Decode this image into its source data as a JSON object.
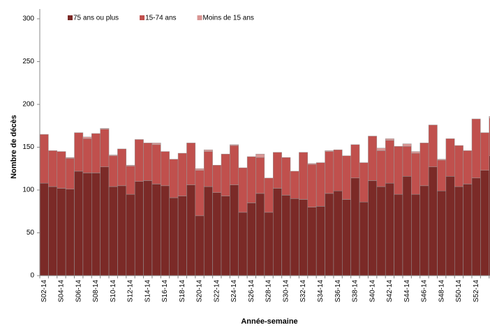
{
  "chart_data": {
    "type": "stacked_bar",
    "x_label": "Année-semaine",
    "y_label": "Nombre  de décès",
    "categories": [
      "S02-14",
      null,
      "S04-14",
      null,
      "S06-14",
      null,
      "S08-14",
      null,
      "S10-14",
      null,
      "S12-14",
      null,
      "S14-14",
      null,
      "S16-14",
      null,
      "S18-14",
      null,
      "S20-14",
      null,
      "S22-14",
      null,
      "S24-14",
      null,
      "S26-14",
      null,
      "S28-14",
      null,
      "S30-14",
      null,
      "S32-14",
      null,
      "S34-14",
      null,
      "S36-14",
      null,
      "S38-14",
      null,
      "S40-14",
      null,
      "S42-14",
      null,
      "S44-14",
      null,
      "S46-14",
      null,
      "S48-14",
      null,
      "S50-14",
      null,
      "S52-14",
      null,
      null
    ],
    "series": [
      {
        "name": "75 ans ou plus",
        "color": "#7b2a27",
        "values": [
          108,
          104,
          102,
          101,
          122,
          120,
          120,
          127,
          104,
          105,
          95,
          110,
          111,
          107,
          105,
          91,
          93,
          106,
          70,
          104,
          97,
          93,
          106,
          74,
          85,
          96,
          74,
          102,
          94,
          90,
          89,
          80,
          81,
          96,
          99,
          89,
          114,
          86,
          111,
          104,
          108,
          95,
          116,
          95,
          105,
          127,
          99,
          116,
          104,
          107,
          114,
          123,
          140
        ]
      },
      {
        "name": "15-74 ans",
        "color": "#c0504d",
        "values": [
          57,
          42,
          43,
          36,
          45,
          40,
          46,
          44,
          36,
          43,
          33,
          49,
          44,
          46,
          40,
          45,
          50,
          49,
          53,
          41,
          32,
          49,
          46,
          52,
          54,
          42,
          40,
          42,
          44,
          32,
          55,
          50,
          51,
          49,
          48,
          51,
          39,
          46,
          52,
          42,
          50,
          56,
          35,
          48,
          50,
          49,
          36,
          44,
          48,
          39,
          69,
          44,
          44
        ]
      },
      {
        "name": "Moins de 15 ans",
        "color": "#d99694",
        "values": [
          0,
          0,
          0,
          1,
          0,
          2,
          0,
          1,
          1,
          0,
          1,
          0,
          0,
          2,
          0,
          0,
          0,
          0,
          2,
          2,
          0,
          0,
          1,
          0,
          0,
          4,
          0,
          0,
          0,
          0,
          0,
          1,
          0,
          1,
          0,
          0,
          0,
          0,
          0,
          3,
          2,
          0,
          3,
          2,
          0,
          0,
          1,
          0,
          0,
          0,
          0,
          0,
          2
        ]
      }
    ],
    "ylim": [
      0,
      300
    ],
    "yticks": [
      0,
      50,
      100,
      150,
      200,
      250,
      300
    ],
    "legend": "top-left"
  }
}
